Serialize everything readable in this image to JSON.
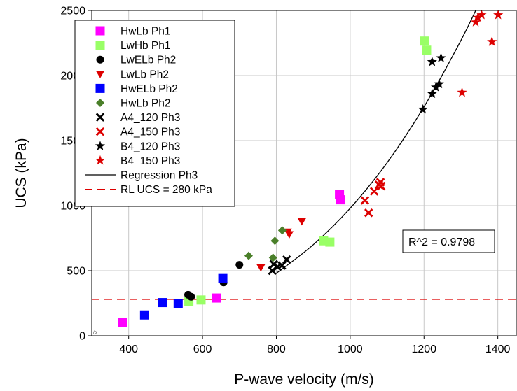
{
  "chart_data": {
    "type": "scatter",
    "xlabel": "P-wave velocity (m/s)",
    "ylabel": "UCS (kPa)",
    "xlim": [
      300,
      1450
    ],
    "ylim": [
      0,
      2500
    ],
    "x_ticks": [
      400,
      600,
      800,
      1000,
      1200,
      1400
    ],
    "y_ticks": [
      0,
      500,
      1000,
      1500,
      2000,
      2500
    ],
    "grid": true,
    "legend_position": "top-left",
    "annotation": "R^2 = 0.9798",
    "corner_mark": "/pl",
    "series": [
      {
        "name": "HwLb Ph1",
        "marker": "square",
        "color": "#ff00ff",
        "points": [
          [
            383,
            100
          ],
          [
            637,
            290
          ],
          [
            971,
            1085
          ],
          [
            973,
            1045
          ]
        ]
      },
      {
        "name": "LwHb Ph1",
        "marker": "square",
        "color": "#99ff66",
        "points": [
          [
            563,
            265
          ],
          [
            596,
            275
          ],
          [
            928,
            730
          ],
          [
            945,
            720
          ],
          [
            1202,
            2265
          ],
          [
            1207,
            2195
          ]
        ]
      },
      {
        "name": "LwELb Ph2",
        "marker": "circle",
        "color": "#000000",
        "points": [
          [
            561,
            315
          ],
          [
            569,
            300
          ],
          [
            657,
            410
          ],
          [
            700,
            545
          ]
        ]
      },
      {
        "name": "LwLb Ph2",
        "marker": "triangle-down",
        "color": "#dd0000",
        "points": [
          [
            758,
            525
          ],
          [
            831,
            800
          ],
          [
            835,
            780
          ],
          [
            869,
            880
          ]
        ]
      },
      {
        "name": "HwELb Ph2",
        "marker": "square",
        "color": "#0000ff",
        "points": [
          [
            443,
            160
          ],
          [
            492,
            255
          ],
          [
            534,
            245
          ],
          [
            655,
            440
          ]
        ]
      },
      {
        "name": "HwLb Ph2",
        "marker": "diamond",
        "color": "#4a7f29",
        "points": [
          [
            725,
            615
          ],
          [
            791,
            600
          ],
          [
            796,
            730
          ],
          [
            816,
            810
          ]
        ]
      },
      {
        "name": "A4_120 Ph3",
        "marker": "x",
        "color": "#000000",
        "points": [
          [
            789,
            500
          ],
          [
            793,
            550
          ],
          [
            803,
            530
          ],
          [
            815,
            540
          ],
          [
            828,
            585
          ]
        ]
      },
      {
        "name": "A4_150 Ph3",
        "marker": "x",
        "color": "#dd0000",
        "points": [
          [
            1040,
            1040
          ],
          [
            1050,
            945
          ],
          [
            1065,
            1110
          ],
          [
            1078,
            1160
          ],
          [
            1082,
            1180
          ],
          [
            1084,
            1150
          ]
        ]
      },
      {
        "name": "B4_120 Ph3",
        "marker": "star",
        "color": "#000000",
        "points": [
          [
            1197,
            1740
          ],
          [
            1222,
            2105
          ],
          [
            1222,
            1860
          ],
          [
            1232,
            1910
          ],
          [
            1241,
            1935
          ],
          [
            1246,
            2135
          ]
        ]
      },
      {
        "name": "B4_150 Ph3",
        "marker": "star",
        "color": "#dd0000",
        "points": [
          [
            1303,
            1870
          ],
          [
            1340,
            2410
          ],
          [
            1346,
            2445
          ],
          [
            1356,
            2465
          ],
          [
            1384,
            2260
          ],
          [
            1401,
            2465
          ]
        ]
      },
      {
        "name": "Regression Ph3",
        "type": "line",
        "style": "solid",
        "color": "#000000",
        "points": [
          [
            800,
            480
          ],
          [
            900,
            700
          ],
          [
            1000,
            980
          ],
          [
            1100,
            1330
          ],
          [
            1200,
            1760
          ],
          [
            1300,
            2270
          ],
          [
            1360,
            2620
          ]
        ]
      },
      {
        "name": "RL UCS = 280 kPa",
        "type": "line",
        "style": "dashed",
        "color": "#dd0000",
        "points": [
          [
            300,
            280
          ],
          [
            1450,
            280
          ]
        ]
      }
    ]
  }
}
